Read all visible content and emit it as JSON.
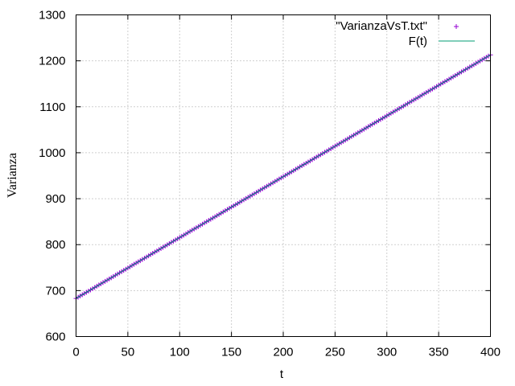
{
  "chart_data": {
    "type": "line",
    "title": "",
    "xlabel": "t",
    "ylabel": "Varianza",
    "xlim": [
      0,
      400
    ],
    "ylim": [
      600,
      1300
    ],
    "xticks": [
      0,
      50,
      100,
      150,
      200,
      250,
      300,
      350,
      400
    ],
    "yticks": [
      600,
      700,
      800,
      900,
      1000,
      1100,
      1200,
      1300
    ],
    "xtick_labels": [
      "0",
      "50",
      "100",
      "150",
      "200",
      "250",
      "300",
      "350",
      "400"
    ],
    "ytick_labels": [
      "600",
      "700",
      "800",
      "900",
      "1000",
      "1100",
      "1200",
      "1300"
    ],
    "grid": true,
    "legend_position": "top-right",
    "series": [
      {
        "name": "\"VarianzaVsT.txt\"",
        "kind": "points",
        "marker": "plus",
        "color": "#9400d3",
        "x_start": 0,
        "x_end": 400,
        "x_step": 2,
        "y_start": 683,
        "y_end": 1213
      },
      {
        "name": "F(t)",
        "kind": "line",
        "color": "#009e73",
        "x": [
          0,
          400
        ],
        "y": [
          683,
          1213
        ]
      }
    ]
  }
}
